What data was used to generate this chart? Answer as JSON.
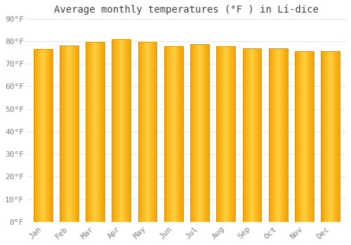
{
  "title": "Average monthly temperatures (°F ) in Lí-dice",
  "months": [
    "Jan",
    "Feb",
    "Mar",
    "Apr",
    "May",
    "Jun",
    "Jul",
    "Aug",
    "Sep",
    "Oct",
    "Nov",
    "Dec"
  ],
  "values": [
    76.5,
    78.0,
    79.8,
    81.0,
    79.8,
    77.8,
    78.8,
    77.8,
    77.0,
    77.0,
    75.8,
    75.8
  ],
  "bar_color_center": "#FFD040",
  "bar_color_edge": "#F5A000",
  "bar_border_color": "#B8860B",
  "background_color": "#FFFFFF",
  "plot_bg_color": "#FFFFFF",
  "grid_color": "#E8E8E8",
  "text_color": "#808080",
  "ylim": [
    0,
    90
  ],
  "yticks": [
    0,
    10,
    20,
    30,
    40,
    50,
    60,
    70,
    80,
    90
  ],
  "ytick_labels": [
    "0°F",
    "10°F",
    "20°F",
    "30°F",
    "40°F",
    "50°F",
    "60°F",
    "70°F",
    "80°F",
    "90°F"
  ],
  "title_fontsize": 10,
  "tick_fontsize": 8,
  "font_family": "monospace"
}
